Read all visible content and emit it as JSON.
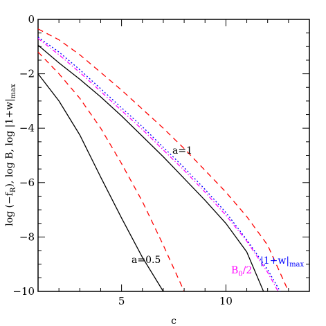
{
  "chart_data": {
    "type": "line",
    "xlabel": "c",
    "ylabel": {
      "part1": "log (−f",
      "sub1": "R",
      "part2": "), log B, log |1+w|",
      "sub2": "max"
    },
    "xlim": [
      1,
      14
    ],
    "ylim": [
      -10,
      0
    ],
    "xticks": [
      5,
      10
    ],
    "yticks": [
      0,
      -2,
      -4,
      -6,
      -8,
      -10
    ],
    "xtick_labels": [
      "5",
      "10"
    ],
    "ytick_labels": [
      "0",
      "−2",
      "−4",
      "−6",
      "−8",
      "−10"
    ],
    "annotations": {
      "a1": "a=1",
      "a05": "a=0.5",
      "w_main": "|1+w|",
      "w_sub": "max",
      "b_main": "B",
      "b_sub": "0",
      "b_tail": "/2"
    },
    "colors": {
      "fR": "#000000",
      "B": "#ff0000",
      "w": "#0000ff",
      "B0half": "#ff00ff"
    },
    "series": [
      {
        "style": "solid",
        "color": "#000000",
        "x": [
          1,
          2,
          3,
          4,
          5,
          6,
          7
        ],
        "y": [
          -2.0,
          -3.0,
          -4.25,
          -5.8,
          -7.3,
          -8.75,
          -10.0
        ]
      },
      {
        "style": "solid",
        "color": "#000000",
        "x": [
          1,
          2,
          3,
          4,
          5,
          6,
          7,
          8,
          9,
          10,
          11,
          11.8
        ],
        "y": [
          -0.95,
          -1.6,
          -2.2,
          -2.85,
          -3.55,
          -4.3,
          -5.05,
          -5.85,
          -6.65,
          -7.5,
          -8.55,
          -10.0
        ]
      },
      {
        "style": "dashed",
        "color": "#ff0000",
        "x": [
          1,
          2,
          3,
          4,
          5,
          6,
          7,
          8
        ],
        "y": [
          -1.2,
          -2.0,
          -2.9,
          -4.0,
          -5.3,
          -6.7,
          -8.3,
          -10.0
        ]
      },
      {
        "style": "dashed",
        "color": "#ff0000",
        "x": [
          1,
          2,
          3,
          4,
          5,
          6,
          7,
          8,
          9,
          10,
          11,
          12,
          13.0
        ],
        "y": [
          -0.35,
          -0.75,
          -1.3,
          -1.95,
          -2.6,
          -3.3,
          -4.0,
          -4.75,
          -5.55,
          -6.35,
          -7.25,
          -8.3,
          -10.0
        ]
      },
      {
        "style": "dotted",
        "color": "#0000ff",
        "x": [
          1,
          2,
          3,
          4,
          5,
          6,
          7,
          8,
          9,
          10,
          11,
          12,
          12.6
        ],
        "y": [
          -0.65,
          -1.2,
          -1.85,
          -2.55,
          -3.25,
          -3.95,
          -4.7,
          -5.45,
          -6.25,
          -7.1,
          -8.1,
          -9.2,
          -10.0
        ]
      },
      {
        "style": "dashdot",
        "color": "#ff00ff",
        "x": [
          1,
          2,
          3,
          4,
          5,
          6,
          7,
          8,
          9,
          10,
          11,
          12,
          12.5
        ],
        "y": [
          -0.7,
          -1.3,
          -1.95,
          -2.65,
          -3.35,
          -4.05,
          -4.8,
          -5.55,
          -6.35,
          -7.2,
          -8.15,
          -9.3,
          -10.0
        ]
      }
    ]
  }
}
